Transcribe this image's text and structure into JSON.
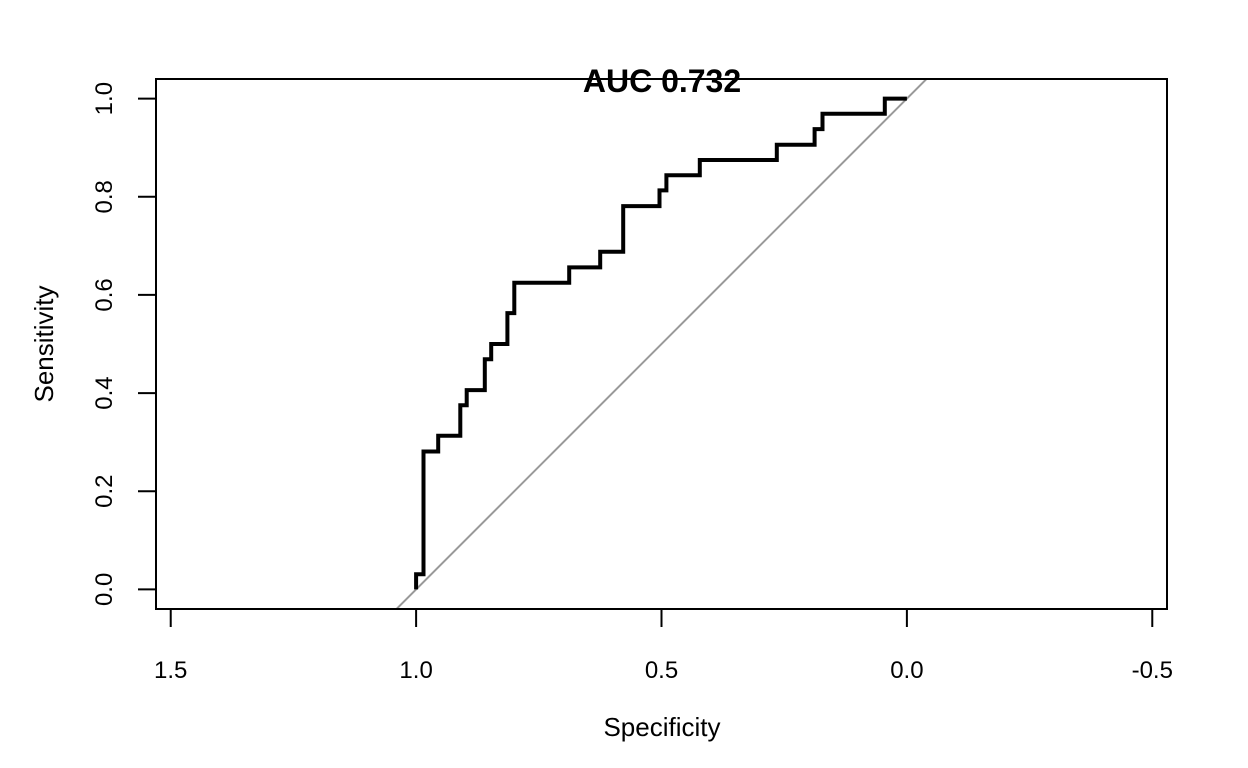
{
  "chart_data": {
    "type": "line",
    "title": "AUC  0.732",
    "xlabel": "Specificity",
    "ylabel": "Sensitivity",
    "xlim": [
      1.53,
      -0.53
    ],
    "ylim": [
      -0.04,
      1.04
    ],
    "x_ticks": [
      1.5,
      1.0,
      0.5,
      0.0,
      -0.5
    ],
    "x_tick_labels": [
      "1.5",
      "1.0",
      "0.5",
      "0.0",
      "-0.5"
    ],
    "y_ticks": [
      0.0,
      0.2,
      0.4,
      0.6,
      0.8,
      1.0
    ],
    "y_tick_labels": [
      "0.0",
      "0.2",
      "0.4",
      "0.6",
      "0.8",
      "1.0"
    ],
    "grid": false,
    "series": [
      {
        "role": "roc-curve",
        "color": "#000000",
        "points": [
          [
            1.0,
            0.0
          ],
          [
            1.0,
            0.031
          ],
          [
            0.985,
            0.031
          ],
          [
            0.985,
            0.281
          ],
          [
            0.955,
            0.281
          ],
          [
            0.955,
            0.313
          ],
          [
            0.91,
            0.313
          ],
          [
            0.91,
            0.375
          ],
          [
            0.897,
            0.375
          ],
          [
            0.897,
            0.406
          ],
          [
            0.86,
            0.406
          ],
          [
            0.86,
            0.469
          ],
          [
            0.847,
            0.469
          ],
          [
            0.847,
            0.5
          ],
          [
            0.814,
            0.5
          ],
          [
            0.814,
            0.563
          ],
          [
            0.8,
            0.563
          ],
          [
            0.8,
            0.625
          ],
          [
            0.688,
            0.625
          ],
          [
            0.688,
            0.656
          ],
          [
            0.625,
            0.656
          ],
          [
            0.625,
            0.688
          ],
          [
            0.578,
            0.688
          ],
          [
            0.578,
            0.781
          ],
          [
            0.504,
            0.781
          ],
          [
            0.504,
            0.813
          ],
          [
            0.49,
            0.813
          ],
          [
            0.49,
            0.844
          ],
          [
            0.422,
            0.844
          ],
          [
            0.422,
            0.875
          ],
          [
            0.265,
            0.875
          ],
          [
            0.265,
            0.906
          ],
          [
            0.188,
            0.906
          ],
          [
            0.188,
            0.938
          ],
          [
            0.172,
            0.938
          ],
          [
            0.172,
            0.969
          ],
          [
            0.045,
            0.969
          ],
          [
            0.045,
            1.0
          ],
          [
            0.0,
            1.0
          ]
        ]
      },
      {
        "role": "reference-diagonal",
        "color": "#999999",
        "points": [
          [
            1.04,
            -0.04
          ],
          [
            -0.04,
            1.04
          ]
        ]
      }
    ]
  }
}
